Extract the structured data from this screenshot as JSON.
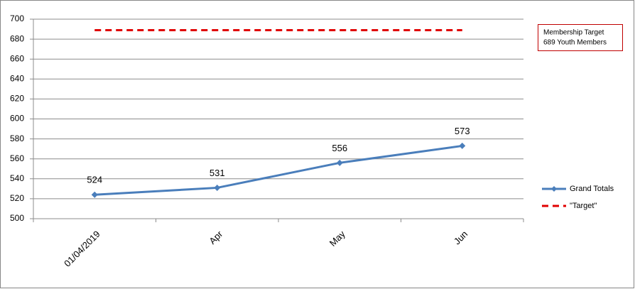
{
  "chart_data": {
    "type": "line",
    "categories": [
      "01/04/2019",
      "Apr",
      "May",
      "Jun"
    ],
    "series": [
      {
        "name": "Grand Totals",
        "color": "#4a7ebb",
        "values": [
          524,
          531,
          556,
          573
        ],
        "data_labels": true,
        "dashed": false
      },
      {
        "name": "\"Target\"",
        "color": "#e00000",
        "values": [
          689,
          689,
          689,
          689
        ],
        "data_labels": false,
        "dashed": true
      }
    ],
    "ylim": [
      500,
      700
    ],
    "yticks": [
      500,
      520,
      540,
      560,
      580,
      600,
      620,
      640,
      660,
      680,
      700
    ],
    "grid": true,
    "legend": "right",
    "annotation": [
      "Membership Target",
      "689 Youth Members"
    ]
  }
}
